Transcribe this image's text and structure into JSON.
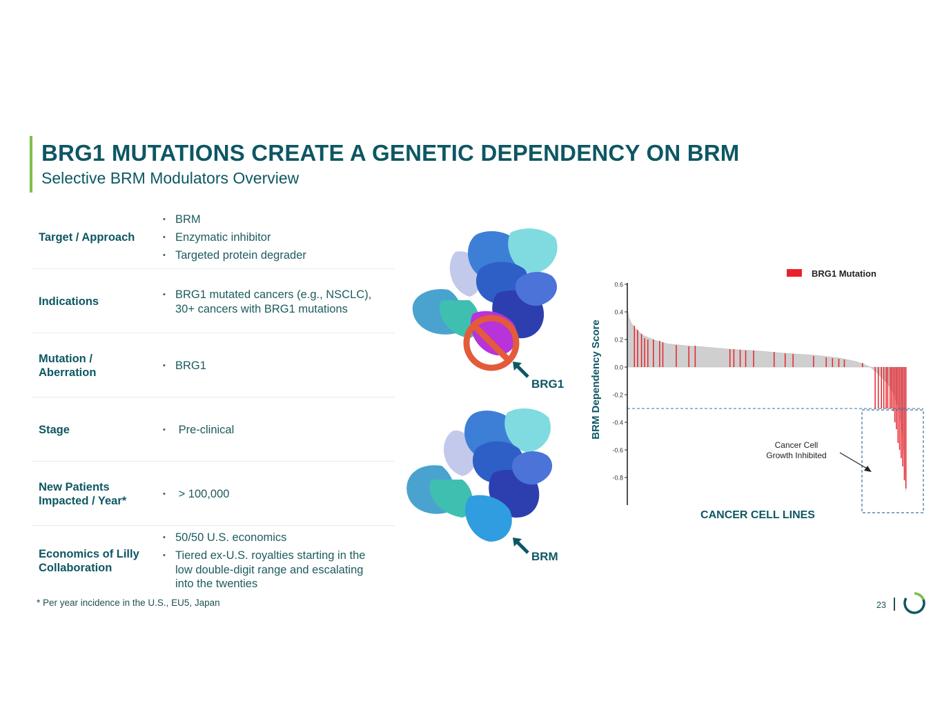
{
  "header": {
    "title": "BRG1 MUTATIONS CREATE A GENETIC DEPENDENCY ON BRM",
    "subtitle": "Selective BRM Modulators Overview"
  },
  "table": {
    "rows": [
      {
        "label": "Target / Approach",
        "bullets": [
          "BRM",
          "Enzymatic inhibitor",
          "Targeted protein degrader"
        ]
      },
      {
        "label": "Indications",
        "bullets": [
          "BRG1 mutated cancers (e.g., NSCLC), 30+ cancers with BRG1 mutations"
        ]
      },
      {
        "label": "Mutation / Aberration",
        "bullets": [
          "BRG1"
        ]
      },
      {
        "label": "Stage",
        "bullets": [
          " Pre-clinical"
        ]
      },
      {
        "label": "New Patients Impacted / Year*",
        "bullets": [
          " > 100,000"
        ]
      },
      {
        "label": "Economics of Lilly Collaboration",
        "bullets": [
          "50/50 U.S. economics",
          "Tiered ex-U.S. royalties starting in the low double-digit range and escalating into the twenties"
        ]
      }
    ]
  },
  "figures": {
    "top_label": "BRG1",
    "bottom_label": "BRM"
  },
  "footnote": "* Per year incidence in the U.S., EU5, Japan",
  "page_number": "23",
  "colors": {
    "brand": "#0d5763",
    "accent_green": "#7cc04a",
    "mutation_red": "#e8212a",
    "prohibit": "#e35b3a"
  },
  "chart_data": {
    "type": "bar",
    "title": "",
    "xlabel": "CANCER CELL LINES",
    "ylabel": "BRM Dependency Score",
    "ylim": [
      -1.0,
      0.6
    ],
    "yticks": [
      "0.6",
      "0.4",
      "0.2",
      "0.0",
      "-0.2",
      "-0.4",
      "-0.6",
      "-0.8"
    ],
    "legend": [
      {
        "name": "BRG1 Mutation",
        "color": "#e8212a",
        "position": "top-right"
      }
    ],
    "threshold": -0.3,
    "annotation": "Cancer Cell Growth Inhibited",
    "curve_points": [
      [
        0,
        0.42
      ],
      [
        2,
        0.36
      ],
      [
        5,
        0.32
      ],
      [
        10,
        0.28
      ],
      [
        20,
        0.23
      ],
      [
        35,
        0.195
      ],
      [
        50,
        0.17
      ],
      [
        75,
        0.155
      ],
      [
        100,
        0.145
      ],
      [
        130,
        0.13
      ],
      [
        160,
        0.12
      ],
      [
        200,
        0.1
      ],
      [
        240,
        0.085
      ],
      [
        270,
        0.065
      ],
      [
        290,
        0.04
      ],
      [
        300,
        0.02
      ],
      [
        308,
        0.0
      ],
      [
        318,
        -0.05
      ],
      [
        330,
        -0.12
      ],
      [
        338,
        -0.2
      ],
      [
        344,
        -0.3
      ],
      [
        348,
        -0.45
      ],
      [
        351,
        -0.65
      ],
      [
        353,
        -0.9
      ]
    ],
    "x_range": [
      0,
      355
    ],
    "mutation_bars": [
      [
        9,
        0.3
      ],
      [
        13,
        0.27
      ],
      [
        18,
        0.24
      ],
      [
        22,
        0.21
      ],
      [
        26,
        0.2
      ],
      [
        33,
        0.2
      ],
      [
        41,
        0.19
      ],
      [
        45,
        0.18
      ],
      [
        62,
        0.16
      ],
      [
        78,
        0.15
      ],
      [
        86,
        0.155
      ],
      [
        130,
        0.13
      ],
      [
        135,
        0.13
      ],
      [
        143,
        0.125
      ],
      [
        150,
        0.12
      ],
      [
        160,
        0.12
      ],
      [
        186,
        0.11
      ],
      [
        200,
        0.1
      ],
      [
        210,
        0.095
      ],
      [
        236,
        0.08
      ],
      [
        252,
        0.07
      ],
      [
        260,
        0.065
      ],
      [
        268,
        0.06
      ],
      [
        275,
        0.055
      ],
      [
        298,
        0.03
      ],
      [
        314,
        -0.3
      ],
      [
        318,
        -0.3
      ],
      [
        322,
        -0.3
      ],
      [
        325,
        -0.3
      ],
      [
        328,
        -0.3
      ],
      [
        330,
        -0.3
      ],
      [
        333,
        -0.3
      ],
      [
        335,
        -0.3
      ],
      [
        337,
        -0.32
      ],
      [
        339,
        -0.4
      ],
      [
        341,
        -0.45
      ],
      [
        343,
        -0.55
      ],
      [
        345,
        -0.6
      ],
      [
        347,
        -0.66
      ],
      [
        349,
        -0.72
      ],
      [
        351,
        -0.82
      ],
      [
        353,
        -0.88
      ]
    ]
  }
}
